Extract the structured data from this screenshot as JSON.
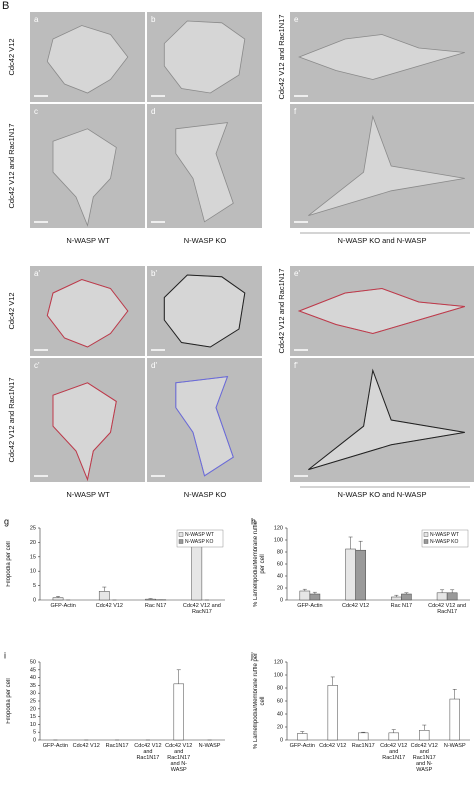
{
  "figure_label": "B",
  "image_sets": [
    {
      "panels": [
        "a",
        "b",
        "e",
        "c",
        "d",
        "f"
      ],
      "row_labels": [
        "Cdc42 V12",
        "Cdc42 V12 and Rac1N17",
        "Cdc42 V12 and Rac1N17"
      ],
      "column_labels": [
        "N-WASP WT",
        "N-WASP KO",
        "N-WASP KO and N-WASP"
      ]
    },
    {
      "panels": [
        "a'",
        "b'",
        "e'",
        "c'",
        "d'",
        "f'"
      ],
      "row_labels": [
        "Cdc42 V12",
        "Cdc42 V12 and Rac1N17",
        "Cdc42 V12 and Rac1N17"
      ],
      "column_labels": [
        "N-WASP WT",
        "N-WASP KO",
        "N-WASP KO and N-WASP"
      ]
    }
  ],
  "chart_data": [
    {
      "type": "bar",
      "panel_label": "g",
      "y_label": "Filopodia per cell",
      "categories": [
        "GFP-Actin",
        "Cdc42 V12",
        "Rac N17",
        "Cdc42 V12 and RacN17"
      ],
      "series": [
        {
          "name": "N-WASP WT",
          "color": "#e6e6e6",
          "values": [
            0.8,
            3,
            0.3,
            22
          ],
          "errors": [
            0.5,
            1.5,
            0.2,
            0.5
          ]
        },
        {
          "name": "N-WASP KO",
          "color": "#9a9a9a",
          "values": [
            0,
            0,
            0.1,
            0
          ],
          "errors": [
            0,
            0,
            0,
            0
          ]
        }
      ],
      "ylim": [
        0,
        25
      ],
      "yticks": [
        0,
        5,
        10,
        15,
        20,
        25
      ],
      "legend": "upper right"
    },
    {
      "type": "bar",
      "panel_label": "h",
      "y_label": "% Lamellipodia/Membrane ruffle per cell",
      "categories": [
        "GFP-Actin",
        "Cdc42 V12",
        "Rac N17",
        "Cdc42 V12 and RacN17"
      ],
      "series": [
        {
          "name": "N-WASP WT",
          "color": "#e6e6e6",
          "values": [
            15,
            85,
            5,
            12
          ],
          "errors": [
            3,
            20,
            3,
            5
          ]
        },
        {
          "name": "N-WASP KO",
          "color": "#9a9a9a",
          "values": [
            10,
            83,
            10,
            12
          ],
          "errors": [
            3,
            15,
            2,
            5
          ]
        }
      ],
      "ylim": [
        0,
        120
      ],
      "yticks": [
        0,
        20,
        40,
        60,
        80,
        100,
        120
      ],
      "legend": "upper right"
    },
    {
      "type": "bar",
      "panel_label": "i",
      "y_label": "Filopodia per cell",
      "categories": [
        "GFP-Actin",
        "Cdc42 V12",
        "Rac1N17",
        "Cdc42 V12 and Rac1N17",
        "Cdc42 V12 and Rac1N17 and N-WASP",
        "N-WASP"
      ],
      "series": [
        {
          "color": "#ffffff",
          "values": [
            0,
            0,
            0,
            0,
            36,
            0
          ],
          "errors": [
            0,
            0,
            0,
            0,
            9,
            0
          ]
        }
      ],
      "ylim": [
        0,
        50
      ],
      "yticks": [
        0,
        5,
        10,
        15,
        20,
        25,
        30,
        35,
        40,
        45,
        50
      ]
    },
    {
      "type": "bar",
      "panel_label": "j",
      "y_label": "% Lamellipodia/Membrane ruffle per cell",
      "categories": [
        "GFP-Actin",
        "Cdc42 V12",
        "Rac1N17",
        "Cdc42 V12 and Rac1N17",
        "Cdc42 V12 and Rac1N17 and N-WASP",
        "N-WASP"
      ],
      "series": [
        {
          "color": "#ffffff",
          "values": [
            10,
            84,
            11,
            11,
            15,
            63
          ],
          "errors": [
            3,
            13,
            1,
            5,
            8,
            15
          ]
        }
      ],
      "ylim": [
        0,
        120
      ],
      "yticks": [
        0,
        20,
        40,
        60,
        80,
        100,
        120
      ]
    }
  ]
}
